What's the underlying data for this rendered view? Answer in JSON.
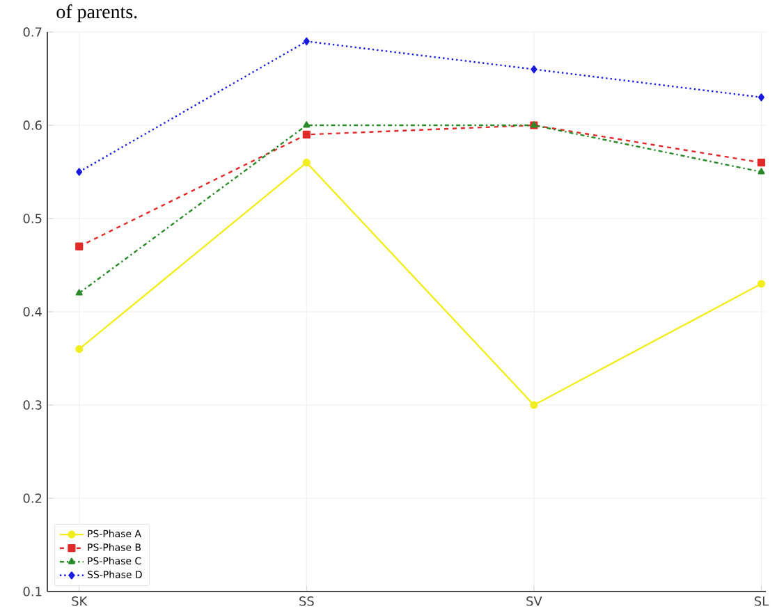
{
  "chart_data": {
    "type": "line",
    "title": "of parents.",
    "categories": [
      "SK",
      "SS",
      "SV",
      "SL"
    ],
    "series": [
      {
        "name": "PS-Phase A",
        "color": "#f2ee1c",
        "marker": "circle",
        "line_style": "solid",
        "values": [
          0.36,
          0.56,
          0.3,
          0.43
        ]
      },
      {
        "name": "PS-Phase B",
        "color": "#e02a2a",
        "marker": "square",
        "line_style": "dashed",
        "values": [
          0.47,
          0.59,
          0.6,
          0.56
        ]
      },
      {
        "name": "PS-Phase C",
        "color": "#2a8a2a",
        "marker": "triangle",
        "line_style": "dashdot",
        "values": [
          0.42,
          0.6,
          0.6,
          0.55
        ]
      },
      {
        "name": "SS-Phase D",
        "color": "#1a1ae0",
        "marker": "diamond",
        "line_style": "dotted",
        "values": [
          0.55,
          0.69,
          0.66,
          0.63
        ]
      }
    ],
    "ylim": [
      0.1,
      0.7
    ],
    "yticks": [
      0.1,
      0.2,
      0.3,
      0.4,
      0.5,
      0.6,
      0.7
    ],
    "grid": true,
    "legend": "bottom left"
  }
}
